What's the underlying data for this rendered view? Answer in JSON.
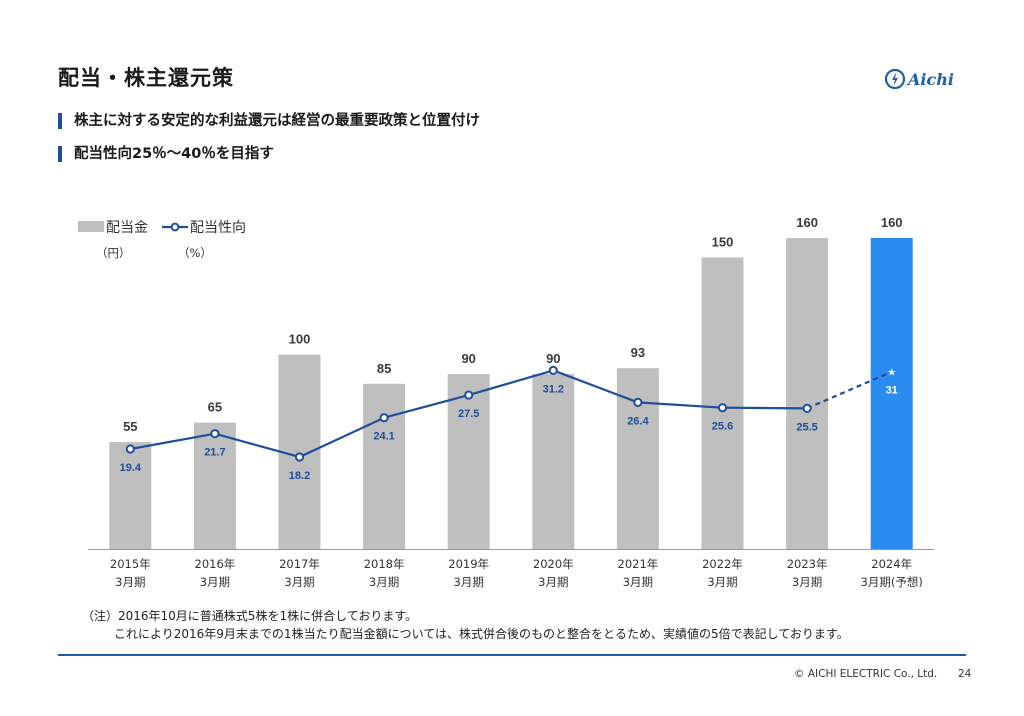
{
  "page": {
    "title": "配当・株主還元策",
    "logo_text": "Aichi",
    "bullets": [
      "株主に対する安定的な利益還元は経営の最重要政策と位置付け",
      "配当性向25％〜40％を目指す"
    ],
    "note_line1": "（注）2016年10月に普通株式5株を1株に併合しております。",
    "note_line2": "これにより2016年9月末までの1株当たり配当金額については、株式併合後のものと整合をとるため、実績値の5倍で表記しております。",
    "footer_copyright": "© AICHI ELECTRIC Co., Ltd.",
    "footer_page": "24",
    "colors": {
      "accent": "#1f4e9b",
      "rule": "#1f5ea8",
      "bar_actual": "#bfbfbf",
      "bar_forecast": "#2a8cf0",
      "line": "#1f4e9b",
      "logo": "#1f5ea8"
    }
  },
  "chart_data": {
    "type": "bar",
    "categories": [
      [
        "2015年",
        "3月期"
      ],
      [
        "2016年",
        "3月期"
      ],
      [
        "2017年",
        "3月期"
      ],
      [
        "2018年",
        "3月期"
      ],
      [
        "2019年",
        "3月期"
      ],
      [
        "2020年",
        "3月期"
      ],
      [
        "2021年",
        "3月期"
      ],
      [
        "2022年",
        "3月期"
      ],
      [
        "2023年",
        "3月期"
      ],
      [
        "2024年",
        "3月期(予想)"
      ]
    ],
    "series": [
      {
        "name": "配当金",
        "unit": "（円）",
        "kind": "bar",
        "values": [
          55,
          65,
          100,
          85,
          90,
          90,
          93,
          150,
          160,
          160
        ],
        "labels": [
          "55",
          "65",
          "100",
          "85",
          "90",
          "90",
          "93",
          "150",
          "160",
          "160"
        ],
        "forecast_from_index": 9
      },
      {
        "name": "配当性向",
        "unit": "（%）",
        "kind": "line",
        "values": [
          19.4,
          21.7,
          18.2,
          24.1,
          27.5,
          31.2,
          26.4,
          25.6,
          25.5,
          31
        ],
        "labels": [
          "19.4",
          "21.7",
          "18.2",
          "24.1",
          "27.5",
          "31.2",
          "26.4",
          "25.6",
          "25.5",
          "31"
        ],
        "dashed_from_index": 8
      }
    ],
    "legend_position": "top-left",
    "grid": false
  }
}
